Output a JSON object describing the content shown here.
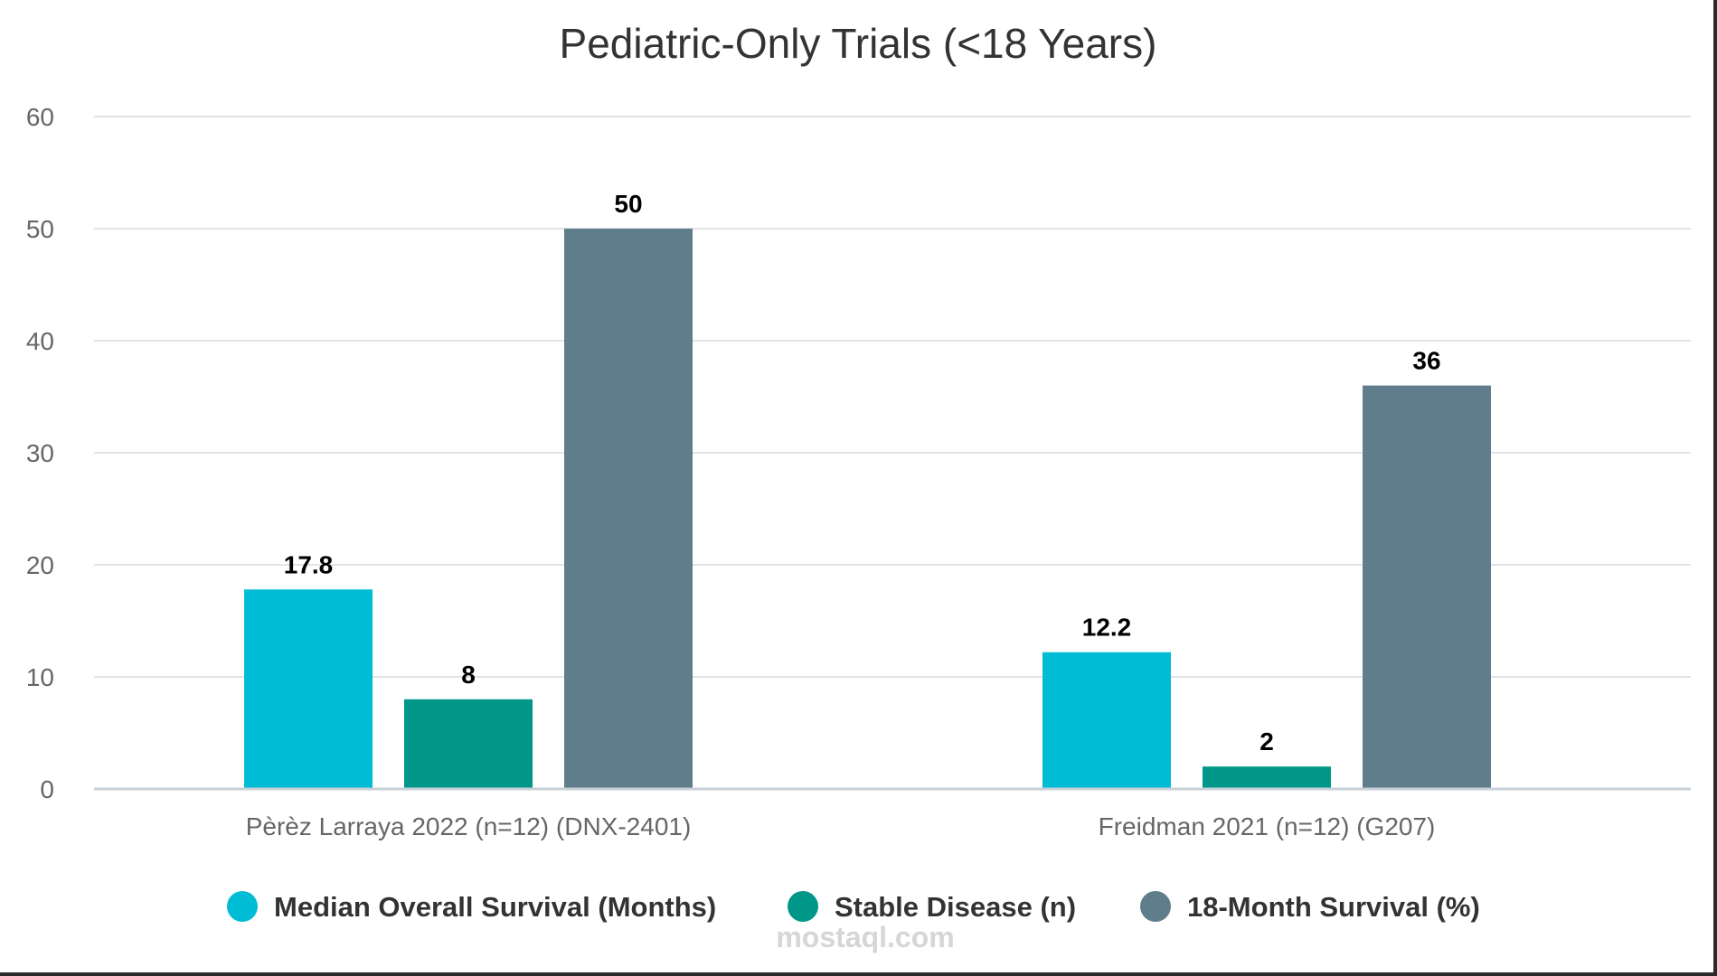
{
  "chart_data": {
    "type": "bar",
    "title": "Pediatric-Only Trials (<18 Years)",
    "xlabel": "",
    "ylabel": "",
    "ylim": [
      0,
      60
    ],
    "yticks": [
      0,
      10,
      20,
      30,
      40,
      50,
      60
    ],
    "grid": true,
    "legend_position": "bottom",
    "categories": [
      "Pèrèz Larraya 2022 (n=12) (DNX-2401)",
      "Freidman 2021 (n=12) (G207)"
    ],
    "series": [
      {
        "name": "Median Overall Survival (Months)",
        "color": "#00bcd4",
        "values": [
          17.8,
          12.2
        ],
        "labels": [
          "17.8",
          "12.2"
        ]
      },
      {
        "name": "Stable Disease (n)",
        "color": "#009688",
        "values": [
          8,
          2
        ],
        "labels": [
          "8",
          "2"
        ]
      },
      {
        "name": "18-Month Survival (%)",
        "color": "#607d8b",
        "values": [
          50,
          36
        ],
        "labels": [
          "50",
          "36"
        ]
      }
    ]
  },
  "watermark": {
    "text": "mostaql.com"
  },
  "colors": {
    "grid": "#e0e4e8",
    "axis": "#c7d0d9",
    "tick_text": "#666666",
    "title_text": "#333333",
    "value_text": "#000000",
    "legend_text": "#333333"
  }
}
